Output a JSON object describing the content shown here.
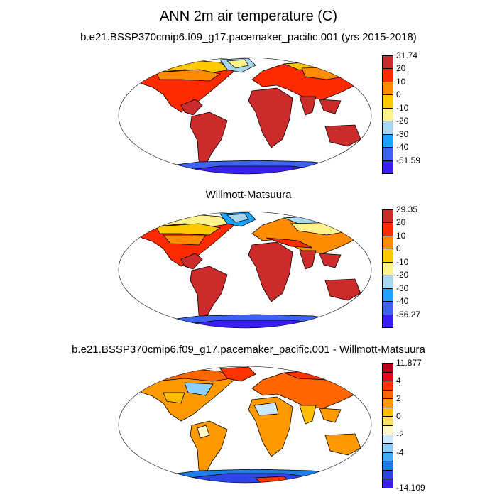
{
  "title": "ANN 2m air temperature (C)",
  "panels": [
    {
      "title": "b.e21.BSSP370cmip6.f09_g17.pacemaker_pacific.001 (yrs 2015-2018)",
      "colorbar": {
        "colors": [
          "#cc2b2b",
          "#ff2a00",
          "#ff8c00",
          "#ffc900",
          "#fff38e",
          "#a9d7f0",
          "#1aa3ff",
          "#3e62f2",
          "#3a1ff2"
        ],
        "labels": [
          "31.74",
          "20",
          "10",
          "0",
          "-10",
          "-20",
          "-30",
          "-40",
          "-51.59"
        ]
      }
    },
    {
      "title": "Willmott-Matsuura",
      "colorbar": {
        "colors": [
          "#cc2b2b",
          "#ff2a00",
          "#ff8c00",
          "#ffc900",
          "#fff38e",
          "#a9d7f0",
          "#1aa3ff",
          "#3e62f2",
          "#3a1ff2"
        ],
        "labels": [
          "29.35",
          "20",
          "10",
          "0",
          "-10",
          "-20",
          "-30",
          "-40",
          "-56.27"
        ]
      }
    },
    {
      "title": "b.e21.BSSP370cmip6.f09_g17.pacemaker_pacific.001 - Willmott-Matsuura",
      "colorbar": {
        "colors": [
          "#b3001b",
          "#e0081a",
          "#ff3300",
          "#ff6600",
          "#ff9900",
          "#ffbf00",
          "#ffe066",
          "#fff8c9",
          "#cde9ff",
          "#8ccfff",
          "#46aaf0",
          "#1e7ce6",
          "#2d44e6",
          "#3a1ff2"
        ],
        "labels": [
          "11.877",
          "4",
          "2",
          "0",
          "-2",
          "-4",
          "-14.109"
        ]
      }
    }
  ]
}
